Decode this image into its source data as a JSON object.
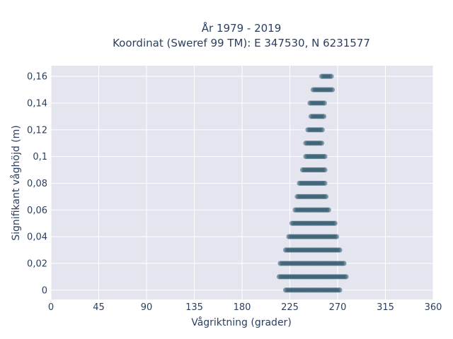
{
  "chart_data": {
    "type": "scatter",
    "title_lines": [
      "År 1979 - 2019",
      "Koordinat (Sweref 99 TM): E 347530, N 6231577"
    ],
    "xlabel": "Vågriktning (grader)",
    "ylabel": "Signifikant våghöjd (m)",
    "xlim": [
      0,
      360
    ],
    "ylim": [
      -0.007,
      0.168
    ],
    "xticks": [
      0,
      45,
      90,
      135,
      180,
      225,
      270,
      315,
      360
    ],
    "xtick_labels": [
      "0",
      "45",
      "90",
      "135",
      "180",
      "225",
      "270",
      "315",
      "360"
    ],
    "yticks": [
      0,
      0.02,
      0.04,
      0.06,
      0.08,
      0.1,
      0.12,
      0.14,
      0.16
    ],
    "ytick_labels": [
      "0",
      "0,02",
      "0,04",
      "0,06",
      "0,08",
      "0,1",
      "0,12",
      "0,14",
      "0,16"
    ],
    "grid": true,
    "marker_color": "#2f5a6e",
    "plot_background": "#e5e5f0",
    "point_clusters": [
      {
        "y": 0.0,
        "x_min": 221,
        "x_max": 272
      },
      {
        "y": 0.01,
        "x_min": 215,
        "x_max": 278
      },
      {
        "y": 0.02,
        "x_min": 216,
        "x_max": 276
      },
      {
        "y": 0.03,
        "x_min": 221,
        "x_max": 273
      },
      {
        "y": 0.04,
        "x_min": 224,
        "x_max": 270
      },
      {
        "y": 0.05,
        "x_min": 227,
        "x_max": 268
      },
      {
        "y": 0.06,
        "x_min": 230,
        "x_max": 262
      },
      {
        "y": 0.07,
        "x_min": 232,
        "x_max": 259
      },
      {
        "y": 0.08,
        "x_min": 234,
        "x_max": 258
      },
      {
        "y": 0.09,
        "x_min": 237,
        "x_max": 258
      },
      {
        "y": 0.1,
        "x_min": 240,
        "x_max": 258
      },
      {
        "y": 0.11,
        "x_min": 240,
        "x_max": 256
      },
      {
        "y": 0.12,
        "x_min": 242,
        "x_max": 256
      },
      {
        "y": 0.13,
        "x_min": 245,
        "x_max": 257
      },
      {
        "y": 0.14,
        "x_min": 244,
        "x_max": 258
      },
      {
        "y": 0.15,
        "x_min": 247,
        "x_max": 265
      },
      {
        "y": 0.16,
        "x_min": 255,
        "x_max": 264
      }
    ]
  }
}
